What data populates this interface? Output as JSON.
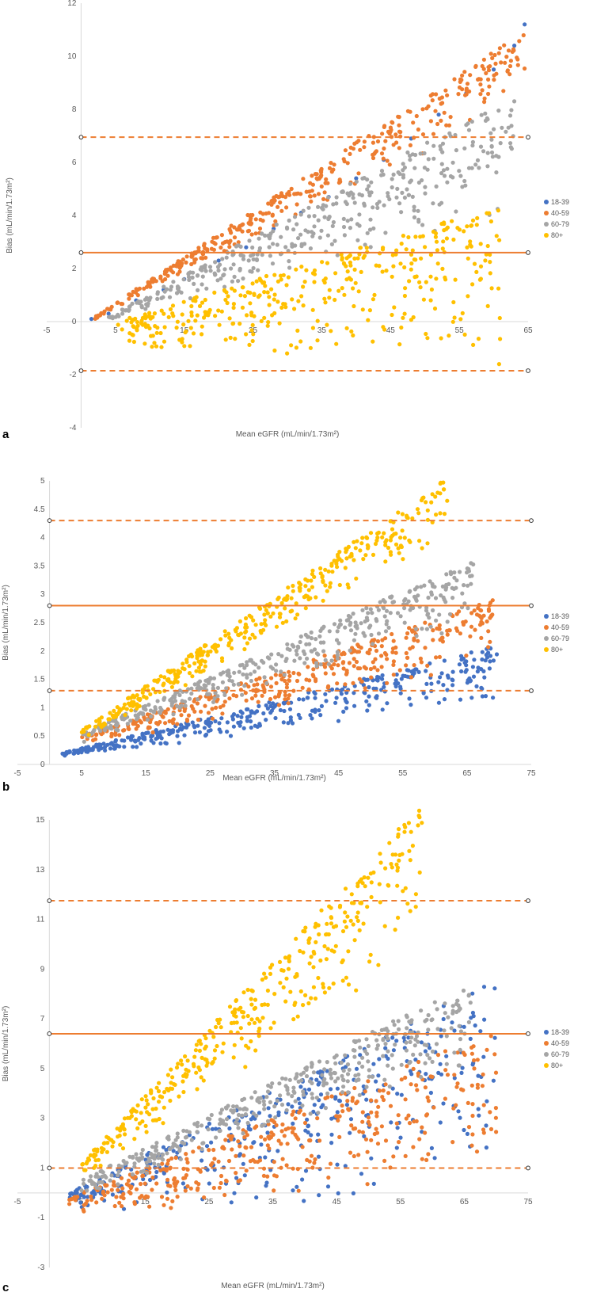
{
  "colors": {
    "age_18_39": "#4472C4",
    "age_40_59": "#ED7D31",
    "age_60_79": "#A5A5A5",
    "age_80_plus": "#FFC000",
    "mean_line": "#ED7D31",
    "limit_line": "#ED7D31",
    "axis": "#D9D9D9",
    "text": "#595959"
  },
  "chart_data": [
    {
      "type": "scatter",
      "panel_label": "a",
      "title": "",
      "xlabel": "Mean eGFR (mL/min/1.73m²)",
      "ylabel": "Bias (mL/min/1.73m²)",
      "xlim": [
        -5,
        65
      ],
      "ylim": [
        -4,
        12
      ],
      "xticks": [
        -5,
        5,
        15,
        25,
        35,
        45,
        55,
        65
      ],
      "yticks": [
        -4,
        -2,
        0,
        2,
        4,
        6,
        8,
        10,
        12
      ],
      "grid": false,
      "legend_position": "right",
      "mean_bias": 2.6,
      "upper_limit": 6.95,
      "lower_limit": -1.85,
      "series": [
        {
          "name": "18-39",
          "color": "#4472C4",
          "x": [
            1.5,
            4,
            8,
            12,
            15,
            20,
            24,
            28,
            32,
            36,
            40,
            44,
            48,
            52,
            56,
            60,
            63,
            64.5
          ],
          "y": [
            0.1,
            0.3,
            0.8,
            1.2,
            1.6,
            2.3,
            2.8,
            3.5,
            4.1,
            4.7,
            5.4,
            6.1,
            6.9,
            7.8,
            8.6,
            9.5,
            10.4,
            11.2
          ]
        },
        {
          "name": "40-59",
          "color": "#ED7D31",
          "x_range": [
            2,
            64.5
          ],
          "bands": [
            [
              0.97,
              1.0
            ],
            [
              0.5,
              0.98
            ]
          ],
          "y_upper_line": [
            [
              1.5,
              0.1
            ],
            [
              64.5,
              11.0
            ]
          ],
          "y_lower_line": [
            [
              1.5,
              0.0
            ],
            [
              64.5,
              8.2
            ]
          ]
        },
        {
          "name": "60-79",
          "color": "#A5A5A5",
          "x_range": [
            4,
            63
          ],
          "y_upper_line": [
            [
              4,
              0.2
            ],
            [
              63,
              8.6
            ]
          ],
          "y_lower_line": [
            [
              4,
              0.0
            ],
            [
              63,
              3.8
            ]
          ]
        },
        {
          "name": "80+",
          "color": "#FFC000",
          "x_range": [
            5,
            61
          ],
          "y_upper_line": [
            [
              5,
              0.0
            ],
            [
              61,
              4.4
            ]
          ],
          "y_lower_line": [
            [
              5,
              -1.0
            ],
            [
              61,
              -2.0
            ]
          ]
        }
      ]
    },
    {
      "type": "scatter",
      "panel_label": "b",
      "title": "",
      "xlabel": "Mean eGFR (mL/min/1.73m²)",
      "ylabel": "Bias (mL/min/1.73m²)",
      "xlim": [
        -5,
        75
      ],
      "ylim": [
        0,
        5
      ],
      "xticks": [
        -5,
        5,
        15,
        25,
        35,
        45,
        55,
        65,
        75
      ],
      "yticks": [
        0,
        0.5,
        1,
        1.5,
        2,
        2.5,
        3,
        3.5,
        4,
        4.5,
        5
      ],
      "grid": false,
      "legend_position": "right",
      "mean_bias": 2.8,
      "upper_limit": 4.3,
      "lower_limit": 1.3,
      "series": [
        {
          "name": "18-39",
          "color": "#4472C4",
          "x_range": [
            2,
            70
          ],
          "y_upper_line": [
            [
              2,
              0.2
            ],
            [
              70,
              2.1
            ]
          ],
          "y_lower_line": [
            [
              2,
              0.1
            ],
            [
              70,
              1.1
            ]
          ]
        },
        {
          "name": "40-59",
          "color": "#ED7D31",
          "x_range": [
            5,
            69
          ],
          "y_upper_line": [
            [
              5,
              0.5
            ],
            [
              69,
              2.9
            ]
          ],
          "y_lower_line": [
            [
              5,
              0.3
            ],
            [
              69,
              1.7
            ]
          ]
        },
        {
          "name": "60-79",
          "color": "#A5A5A5",
          "x_range": [
            5,
            66
          ],
          "y_upper_line": [
            [
              5,
              0.55
            ],
            [
              66,
              3.6
            ]
          ],
          "y_lower_line": [
            [
              5,
              0.35
            ],
            [
              66,
              2.4
            ]
          ]
        },
        {
          "name": "80+",
          "color": "#FFC000",
          "x_range": [
            5,
            62
          ],
          "y_upper_line": [
            [
              5,
              0.6
            ],
            [
              56,
              4.6
            ]
          ],
          "y_lower_line": [
            [
              5,
              0.4
            ],
            [
              62,
              3.9
            ]
          ]
        }
      ]
    },
    {
      "type": "scatter",
      "panel_label": "c",
      "title": "",
      "xlabel": "Mean eGFR (mL/min/1.73m²)",
      "ylabel": "Bias (mL/min/1.73m²)",
      "xlim": [
        -5,
        75
      ],
      "ylim": [
        -3,
        15
      ],
      "xticks": [
        -5,
        5,
        15,
        25,
        35,
        45,
        55,
        65,
        75
      ],
      "yticks": [
        -3,
        -1,
        1,
        3,
        5,
        7,
        9,
        11,
        13,
        15
      ],
      "grid": false,
      "legend_position": "right",
      "mean_bias": 6.4,
      "upper_limit": 11.75,
      "lower_limit": 1.0,
      "series": [
        {
          "name": "18-39",
          "color": "#4472C4",
          "x_range": [
            3,
            70
          ],
          "y_upper_line": [
            [
              3,
              0.0
            ],
            [
              70,
              8.6
            ]
          ],
          "y_lower_line": [
            [
              3,
              -0.8
            ],
            [
              70,
              -0.5
            ]
          ]
        },
        {
          "name": "40-59",
          "color": "#ED7D31",
          "x_range": [
            3,
            70
          ],
          "y_upper_line": [
            [
              3,
              -0.2
            ],
            [
              65,
              6.0
            ]
          ],
          "y_lower_line": [
            [
              3,
              -1.1
            ],
            [
              70,
              0.5
            ]
          ]
        },
        {
          "name": "60-79",
          "color": "#A5A5A5",
          "x_range": [
            5,
            66
          ],
          "y_upper_line": [
            [
              5,
              0.5
            ],
            [
              66,
              8.5
            ]
          ],
          "y_lower_line": [
            [
              5,
              -0.2
            ],
            [
              66,
              5.0
            ]
          ]
        },
        {
          "name": "80+",
          "color": "#FFC000",
          "x_range": [
            5,
            59
          ],
          "y_upper_line": [
            [
              5,
              1.2
            ],
            [
              52,
              13.9
            ]
          ],
          "y_lower_line": [
            [
              5,
              0.4
            ],
            [
              59,
              10.0
            ]
          ]
        }
      ]
    }
  ]
}
